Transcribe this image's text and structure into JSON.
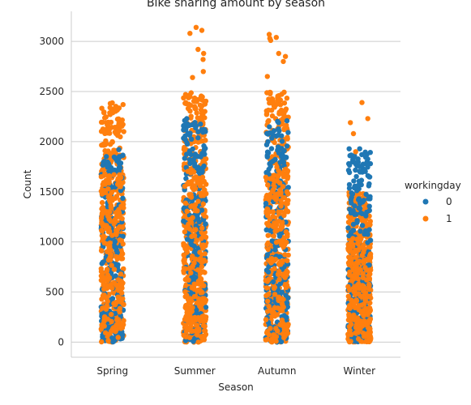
{
  "chart_data": {
    "type": "scatter",
    "subtype": "strip",
    "title": "Bike sharing amount by season",
    "xlabel": "Season",
    "ylabel": "Count",
    "categories": [
      "Spring",
      "Summer",
      "Autumn",
      "Winter"
    ],
    "ylim": [
      -150,
      3300
    ],
    "yticks": [
      0,
      500,
      1000,
      1500,
      2000,
      2500,
      3000
    ],
    "grid": "horizontal",
    "legend": {
      "title": "workingday",
      "placement": "right",
      "entries": [
        {
          "label": "0",
          "color": "#1f77b4"
        },
        {
          "label": "1",
          "color": "#ff7f0e"
        }
      ]
    },
    "series": [
      {
        "name": "0",
        "color": "#1f77b4",
        "dense_range": [
          [
            0,
            1930
          ],
          [
            0,
            2230
          ],
          [
            0,
            2210
          ],
          [
            0,
            1950
          ]
        ]
      },
      {
        "name": "1",
        "color": "#ff7f0e",
        "dense_range": [
          [
            0,
            2400
          ],
          [
            0,
            2500
          ],
          [
            0,
            2500
          ],
          [
            0,
            1500
          ]
        ],
        "outliers": [
          {
            "x": "Summer",
            "y": 3140
          },
          {
            "x": "Summer",
            "y": 3110
          },
          {
            "x": "Summer",
            "y": 3080
          },
          {
            "x": "Summer",
            "y": 2920
          },
          {
            "x": "Summer",
            "y": 2880
          },
          {
            "x": "Summer",
            "y": 2820
          },
          {
            "x": "Summer",
            "y": 2700
          },
          {
            "x": "Summer",
            "y": 2640
          },
          {
            "x": "Autumn",
            "y": 3070
          },
          {
            "x": "Autumn",
            "y": 3040
          },
          {
            "x": "Autumn",
            "y": 3030
          },
          {
            "x": "Autumn",
            "y": 3010
          },
          {
            "x": "Autumn",
            "y": 2880
          },
          {
            "x": "Autumn",
            "y": 2850
          },
          {
            "x": "Autumn",
            "y": 2800
          },
          {
            "x": "Autumn",
            "y": 2650
          },
          {
            "x": "Winter",
            "y": 2390
          },
          {
            "x": "Winter",
            "y": 2230
          },
          {
            "x": "Winter",
            "y": 2190
          },
          {
            "x": "Winter",
            "y": 2080
          },
          {
            "x": "Winter",
            "y": 1900
          }
        ]
      }
    ]
  }
}
